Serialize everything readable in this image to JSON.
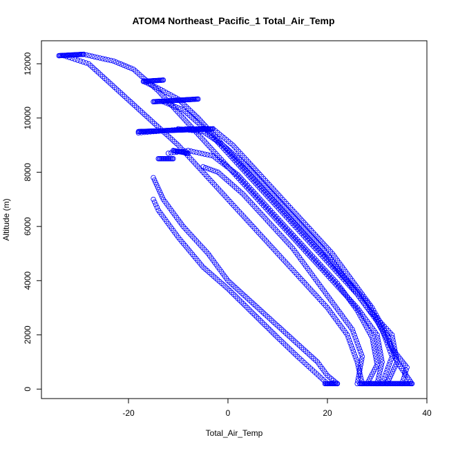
{
  "chart_data": {
    "type": "scatter",
    "title": "ATOM4 Northeast_Pacific_1 Total_Air_Temp",
    "xlabel": "Total_Air_Temp",
    "ylabel": "Altitude (m)",
    "xlim": [
      -37.5,
      40
    ],
    "ylim": [
      -350,
      12850
    ],
    "xticks": [
      -20,
      0,
      20,
      40
    ],
    "xtick_labels": [
      "-20",
      "0",
      "20",
      "40"
    ],
    "yticks": [
      0,
      2000,
      4000,
      6000,
      8000,
      10000,
      12000
    ],
    "ytick_labels": [
      "0",
      "2000",
      "4000",
      "6000",
      "8000",
      "10000",
      "12000"
    ],
    "grid": false,
    "legend": "none",
    "marker": "open-circle",
    "color": "#0000ff",
    "profiles": [
      [
        [
          22,
          200
        ],
        [
          20,
          500
        ],
        [
          18,
          1000
        ],
        [
          12,
          2000
        ],
        [
          6,
          3000
        ],
        [
          0,
          4000
        ],
        [
          -4,
          5000
        ],
        [
          -9,
          6000
        ],
        [
          -13,
          7000
        ],
        [
          -15,
          7800
        ]
      ],
      [
        [
          20,
          200
        ],
        [
          17,
          700
        ],
        [
          14,
          1200
        ],
        [
          10,
          1900
        ],
        [
          5,
          2800
        ],
        [
          0,
          3700
        ],
        [
          -5,
          4500
        ],
        [
          -10,
          5600
        ],
        [
          -14,
          6600
        ],
        [
          -15,
          7000
        ]
      ],
      [
        [
          27,
          200
        ],
        [
          26,
          1000
        ],
        [
          24,
          2000
        ],
        [
          20,
          3000
        ],
        [
          15,
          4000
        ],
        [
          10,
          5000
        ],
        [
          5,
          6000
        ],
        [
          0,
          7000
        ],
        [
          -5,
          8000
        ],
        [
          -10,
          9000
        ],
        [
          -16,
          10000
        ],
        [
          -22,
          11000
        ],
        [
          -28,
          12000
        ],
        [
          -33,
          12300
        ]
      ],
      [
        [
          30,
          200
        ],
        [
          31,
          1000
        ],
        [
          30,
          2000
        ],
        [
          26,
          3000
        ],
        [
          21,
          4000
        ],
        [
          16,
          5000
        ],
        [
          11,
          6000
        ],
        [
          6,
          7000
        ],
        [
          1,
          8000
        ],
        [
          -4,
          9000
        ],
        [
          -9,
          10000
        ],
        [
          -14,
          11000
        ],
        [
          -19,
          11800
        ],
        [
          -23,
          12100
        ],
        [
          -29,
          12350
        ]
      ],
      [
        [
          35,
          200
        ],
        [
          36,
          800
        ],
        [
          33,
          1500
        ],
        [
          30,
          2500
        ],
        [
          26,
          3500
        ],
        [
          21,
          4500
        ],
        [
          16,
          5500
        ],
        [
          11,
          6500
        ],
        [
          6,
          7500
        ],
        [
          1,
          8500
        ],
        [
          -4,
          9500
        ],
        [
          -9,
          10300
        ],
        [
          -13,
          10600
        ]
      ],
      [
        [
          37,
          200
        ],
        [
          34,
          1000
        ],
        [
          32,
          2000
        ],
        [
          29,
          3000
        ],
        [
          25,
          4000
        ],
        [
          21,
          5000
        ],
        [
          16,
          6000
        ],
        [
          11,
          7000
        ],
        [
          6,
          8000
        ],
        [
          1,
          9000
        ],
        [
          -3,
          9600
        ],
        [
          -8,
          9600
        ],
        [
          -15,
          9500
        ],
        [
          -18,
          9450
        ]
      ],
      [
        [
          31,
          200
        ],
        [
          33,
          1200
        ],
        [
          31,
          2200
        ],
        [
          28,
          3200
        ],
        [
          23,
          4200
        ],
        [
          19,
          5200
        ],
        [
          14,
          6200
        ],
        [
          9,
          7200
        ],
        [
          4,
          8200
        ],
        [
          -1,
          9000
        ],
        [
          -5,
          9500
        ],
        [
          -10,
          9600
        ]
      ],
      [
        [
          28,
          200
        ],
        [
          30,
          900
        ],
        [
          29,
          1900
        ],
        [
          26,
          2900
        ],
        [
          22,
          3900
        ],
        [
          17,
          4900
        ],
        [
          12,
          5900
        ],
        [
          7,
          6900
        ],
        [
          2,
          7900
        ],
        [
          -3,
          8600
        ],
        [
          -8,
          8800
        ],
        [
          -12,
          8700
        ]
      ],
      [
        [
          32,
          200
        ],
        [
          34,
          1000
        ],
        [
          33,
          2000
        ],
        [
          28,
          3000
        ],
        [
          24,
          4000
        ],
        [
          19,
          5000
        ],
        [
          14,
          6000
        ],
        [
          9,
          7000
        ],
        [
          4,
          8000
        ],
        [
          -1,
          9000
        ],
        [
          -6,
          10000
        ],
        [
          -10,
          10700
        ],
        [
          -14,
          11100
        ],
        [
          -17,
          11350
        ]
      ],
      [
        [
          26,
          200
        ],
        [
          27,
          1200
        ],
        [
          25,
          2200
        ],
        [
          21,
          3200
        ],
        [
          17,
          4200
        ],
        [
          13,
          5200
        ],
        [
          8,
          6200
        ],
        [
          3,
          7200
        ],
        [
          -2,
          8000
        ],
        [
          -5,
          8200
        ]
      ]
    ],
    "dense_segments": [
      [
        [
          -34,
          12300
        ],
        [
          -29,
          12350
        ]
      ],
      [
        [
          -17,
          11350
        ],
        [
          -13,
          11400
        ]
      ],
      [
        [
          -15,
          10600
        ],
        [
          -6,
          10700
        ]
      ],
      [
        [
          -18,
          9500
        ],
        [
          -3,
          9600
        ]
      ],
      [
        [
          -11,
          8800
        ],
        [
          -8,
          8700
        ]
      ],
      [
        [
          -14,
          8500
        ],
        [
          -11,
          8500
        ]
      ],
      [
        [
          19.5,
          200
        ],
        [
          22,
          200
        ]
      ],
      [
        [
          26.5,
          200
        ],
        [
          37,
          200
        ]
      ]
    ]
  }
}
